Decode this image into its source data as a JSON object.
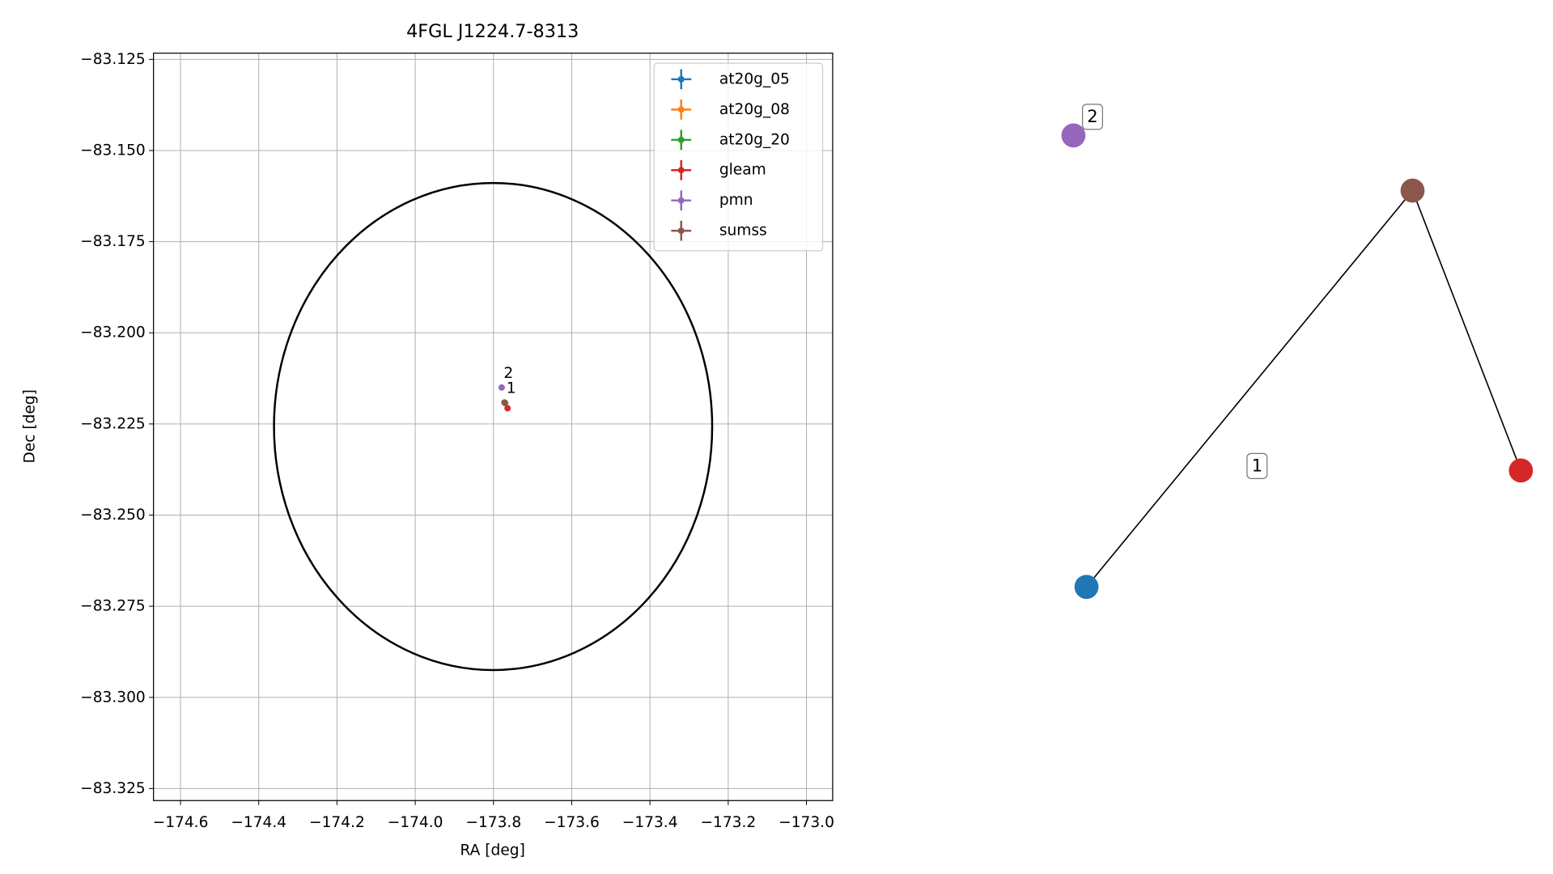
{
  "chart_data": [
    {
      "type": "scatter",
      "title": "4FGL J1224.7-8313",
      "xlabel": "RA [deg]",
      "ylabel": "Dec [deg]",
      "xlim": [
        -174.669,
        -172.933
      ],
      "ylim": [
        -83.3283,
        -83.1233
      ],
      "grid": true,
      "legend": "upper right",
      "xticks": [
        {
          "value": -174.6,
          "label": "−174.6"
        },
        {
          "value": -174.4,
          "label": "−174.4"
        },
        {
          "value": -174.2,
          "label": "−174.2"
        },
        {
          "value": -174.0,
          "label": "−174.0"
        },
        {
          "value": -173.8,
          "label": "−173.8"
        },
        {
          "value": -173.6,
          "label": "−173.6"
        },
        {
          "value": -173.4,
          "label": "−173.4"
        },
        {
          "value": -173.2,
          "label": "−173.2"
        },
        {
          "value": -173.0,
          "label": "−173.0"
        }
      ],
      "yticks": [
        {
          "value": -83.125,
          "label": "−83.125"
        },
        {
          "value": -83.15,
          "label": "−83.150"
        },
        {
          "value": -83.175,
          "label": "−83.175"
        },
        {
          "value": -83.2,
          "label": "−83.200"
        },
        {
          "value": -83.225,
          "label": "−83.225"
        },
        {
          "value": -83.25,
          "label": "−83.250"
        },
        {
          "value": -83.275,
          "label": "−83.275"
        },
        {
          "value": -83.3,
          "label": "−83.300"
        },
        {
          "value": -83.325,
          "label": "−83.325"
        }
      ],
      "series": [
        {
          "name": "at20g_05",
          "color": "#1f77b4",
          "x": [
            -173.77
          ],
          "values": [
            -83.2193
          ]
        },
        {
          "name": "at20g_08",
          "color": "#ff7f0e",
          "x": [
            -173.77
          ],
          "values": [
            -83.2193
          ]
        },
        {
          "name": "at20g_20",
          "color": "#2ca02c",
          "x": [
            -173.771
          ],
          "values": [
            -83.2192
          ]
        },
        {
          "name": "gleam",
          "color": "#d62728",
          "x": [
            -173.764
          ],
          "values": [
            -83.2207
          ]
        },
        {
          "name": "pmn",
          "color": "#9467bd",
          "x": [
            -173.779
          ],
          "values": [
            -83.215
          ]
        },
        {
          "name": "sumss",
          "color": "#8c564b",
          "x": [
            -173.772
          ],
          "values": [
            -83.2191
          ]
        }
      ],
      "ellipse": {
        "center_ra": -173.801,
        "center_dec": -83.2257,
        "radius_ra": 0.56,
        "radius_dec": 0.0668,
        "color": "#000000"
      },
      "annotations": [
        {
          "text": "2",
          "x": -173.779,
          "y": -83.215
        },
        {
          "text": "1",
          "x": -173.772,
          "y": -83.2191
        }
      ]
    },
    {
      "type": "network",
      "nodes": [
        {
          "color": "#1f77b4"
        },
        {
          "color": "#9467bd"
        },
        {
          "color": "#8c564b"
        },
        {
          "color": "#d62728"
        }
      ],
      "edges": [
        [
          0,
          2
        ],
        [
          2,
          3
        ]
      ],
      "edge_labels": [
        {
          "edge": 0,
          "text": "1"
        }
      ],
      "node_labels": [
        {
          "node": 1,
          "text": "2"
        }
      ]
    }
  ]
}
